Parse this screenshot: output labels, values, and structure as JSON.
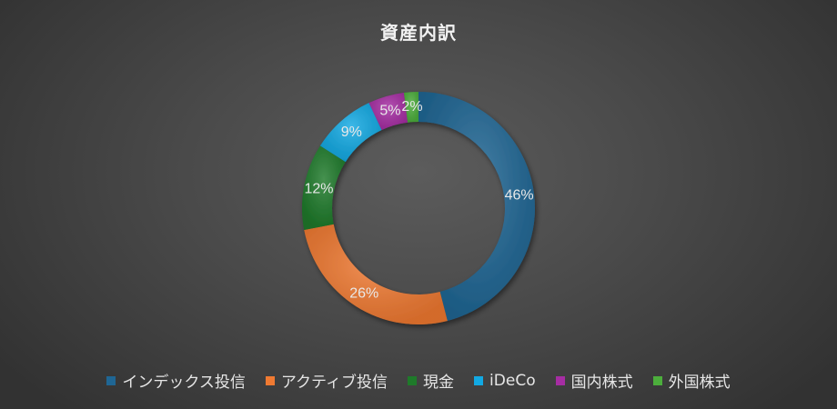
{
  "chart_data": {
    "type": "pie",
    "title": "資産内訳",
    "categories": [
      "インデックス投信",
      "アクティブ投信",
      "現金",
      "iDeCo",
      "国内株式",
      "外国株式"
    ],
    "values": [
      46,
      26,
      12,
      9,
      5,
      2
    ],
    "value_labels": [
      "46%",
      "26%",
      "12%",
      "9%",
      "5%",
      "2%"
    ],
    "colors": [
      "#1f6694",
      "#f07a32",
      "#1e7a2a",
      "#12a9e3",
      "#a62da3",
      "#4cae3c"
    ],
    "donut": true,
    "legend_position": "bottom"
  }
}
